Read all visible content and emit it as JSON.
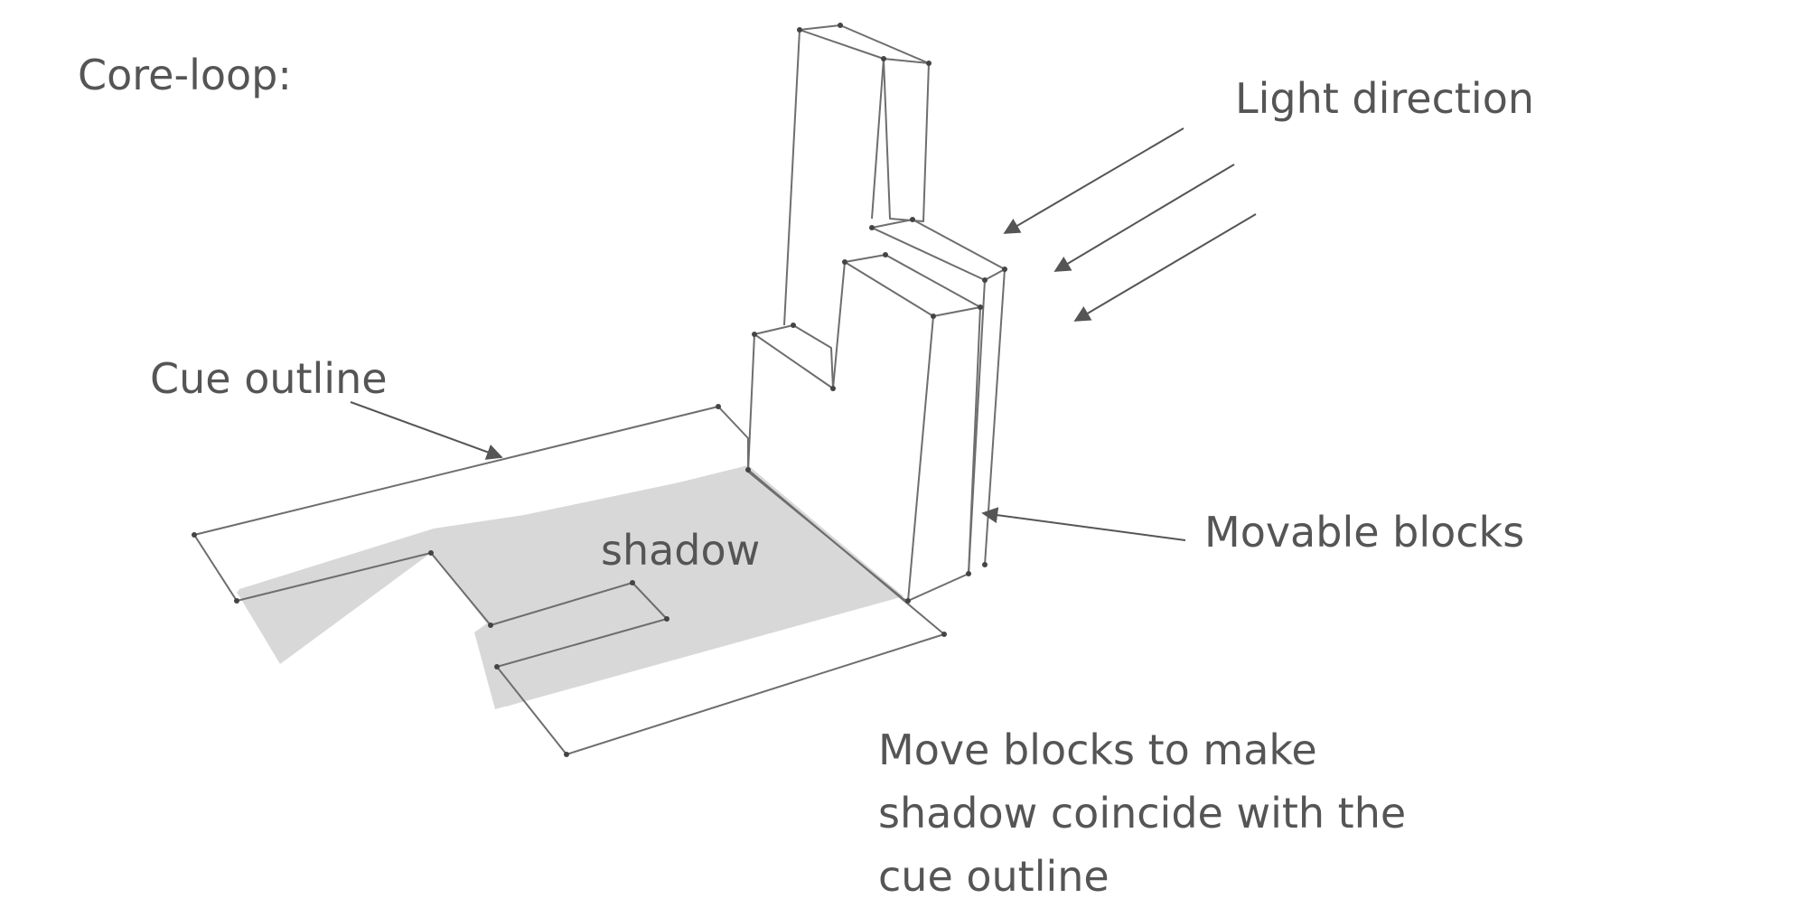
{
  "title": "Core-loop:",
  "labels": {
    "light_direction": "Light direction",
    "cue_outline": "Cue outline",
    "shadow": "shadow",
    "movable_blocks": "Movable blocks"
  },
  "caption": "Move blocks to make shadow coincide with the cue outline",
  "colors": {
    "text": "#555555",
    "line": "#6e6e6e",
    "shadow_fill": "#d8d8d8",
    "background": "#ffffff"
  }
}
